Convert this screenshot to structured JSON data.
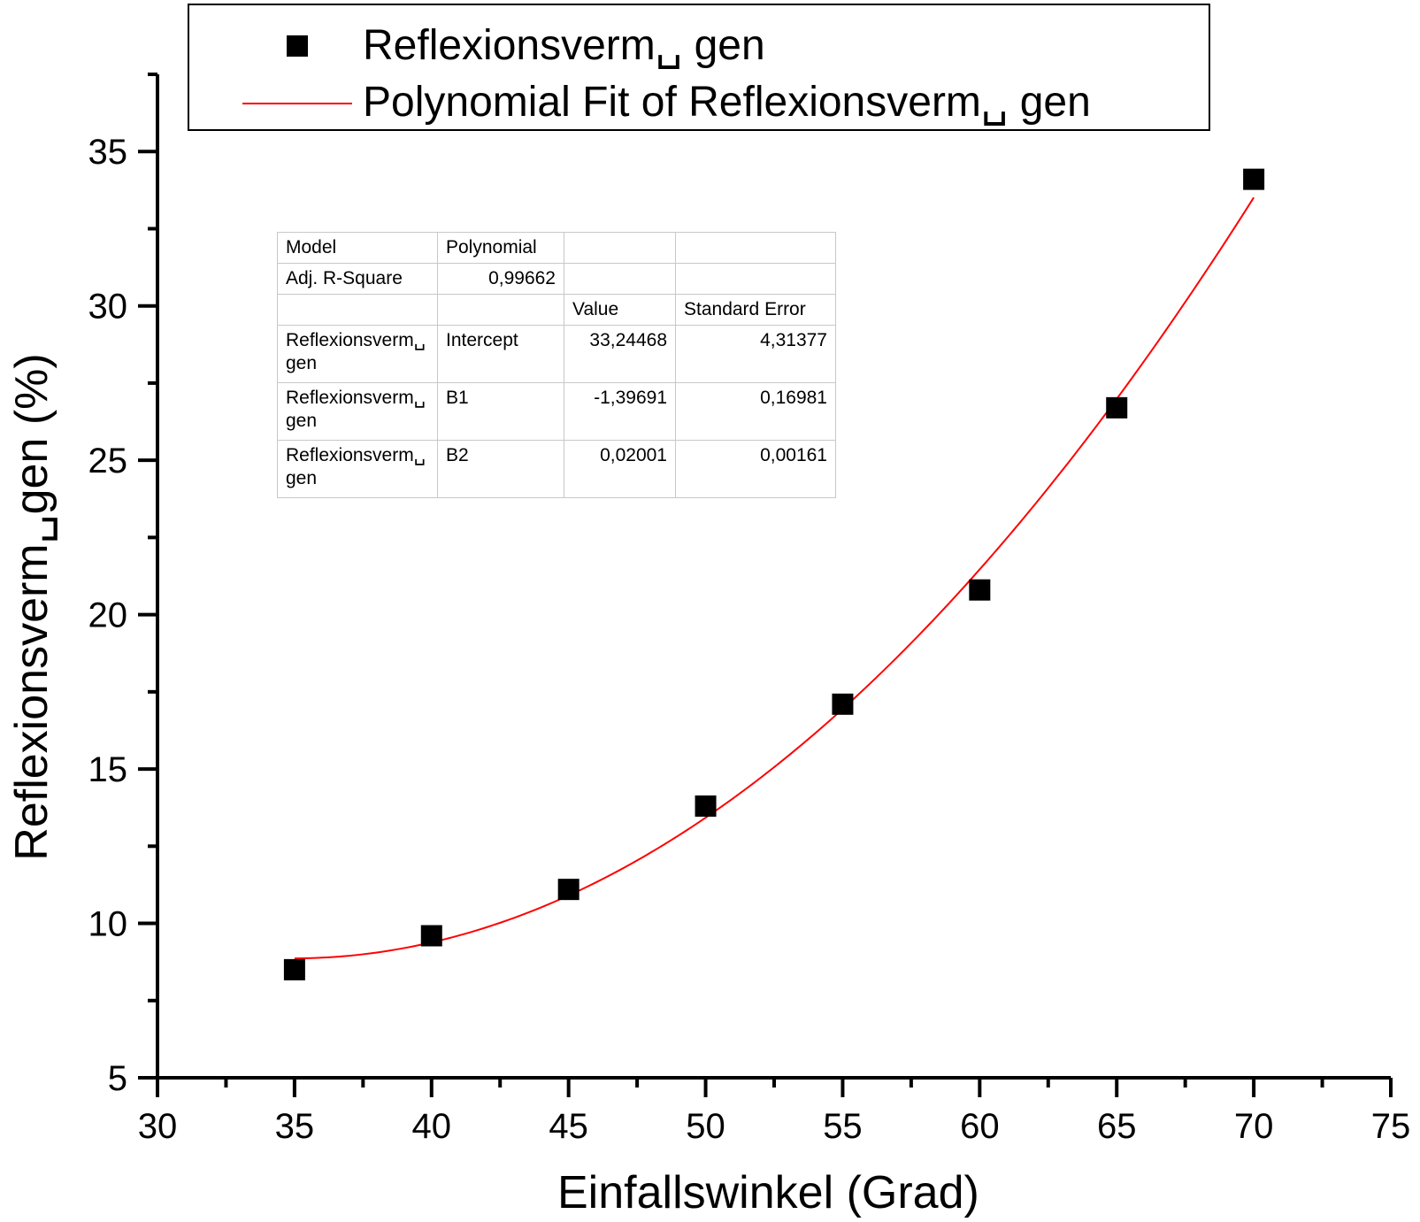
{
  "chart_data": {
    "type": "scatter",
    "xlabel": "Einfallswinkel (Grad)",
    "ylabel": "Reflexionsverm␣gen (%)",
    "xlim": [
      30,
      75
    ],
    "ylim": [
      5,
      37.5
    ],
    "x_ticks": [
      "30",
      "35",
      "40",
      "45",
      "50",
      "55",
      "60",
      "65",
      "70",
      "75"
    ],
    "y_ticks": [
      "5",
      "10",
      "15",
      "20",
      "25",
      "30",
      "35"
    ],
    "grid": false,
    "legend_position": "top",
    "legend": [
      {
        "label": "Reflexionsverm␣ gen",
        "kind": "marker"
      },
      {
        "label": "Polynomial Fit of Reflexionsverm␣ gen",
        "kind": "line"
      }
    ],
    "series": [
      {
        "kind": "scatter",
        "x": [
          35,
          40,
          45,
          50,
          55,
          60,
          65,
          70
        ],
        "y": [
          8.5,
          9.6,
          11.1,
          13.8,
          17.1,
          20.8,
          26.7,
          34.1
        ]
      },
      {
        "kind": "fit",
        "model": "polynomial",
        "intercept": 33.24468,
        "b1": -1.39691,
        "b2": 0.02001,
        "x_range": [
          35,
          70
        ]
      }
    ],
    "fit_table": {
      "rows": [
        [
          "Model",
          "Polynomial",
          "",
          ""
        ],
        [
          "Adj. R-Square",
          "0,99662",
          "",
          ""
        ],
        [
          "",
          "",
          "Value",
          "Standard Error"
        ],
        [
          "Reflexionsverm␣ gen",
          "Intercept",
          "33,24468",
          "4,31377"
        ],
        [
          "Reflexionsverm␣ gen",
          "B1",
          "-1,39691",
          "0,16981"
        ],
        [
          "Reflexionsverm␣ gen",
          "B2",
          "0,02001",
          "0,00161"
        ]
      ]
    }
  },
  "colors": {
    "marker": "#000000",
    "fit_line": "#ff0000",
    "axis": "#000000"
  }
}
